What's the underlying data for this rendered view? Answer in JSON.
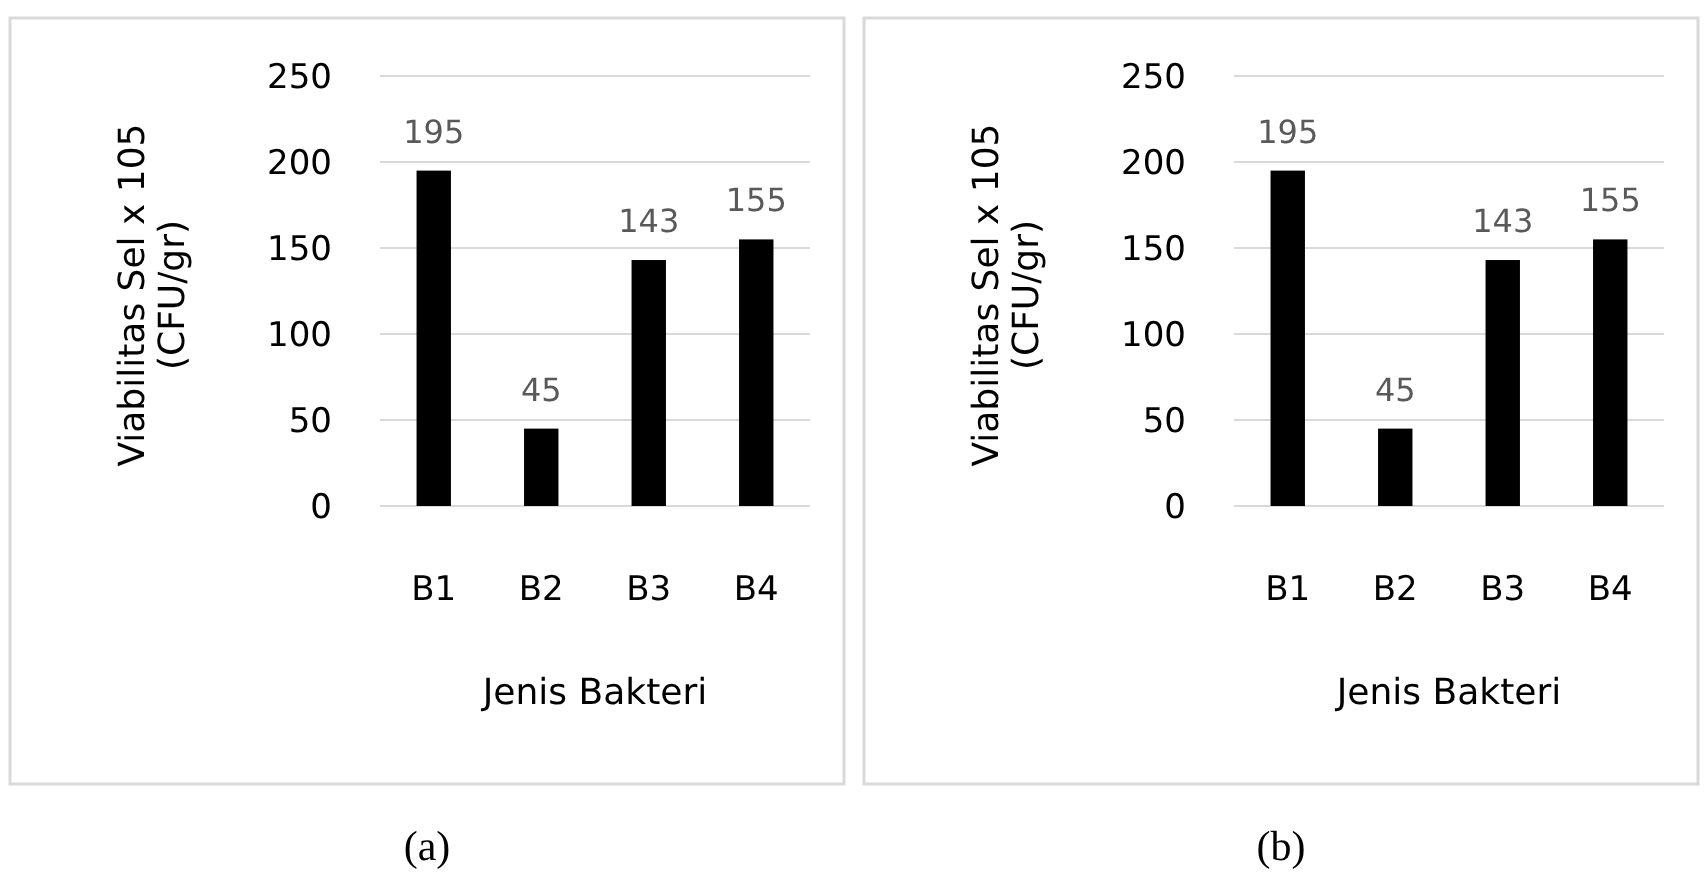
{
  "chart_data": [
    {
      "type": "bar",
      "xlabel": "Jenis Bakteri",
      "ylabel": "Viabilitas Sel x 105\n(CFU/gr)",
      "categories": [
        "B1",
        "B2",
        "B3",
        "B4"
      ],
      "values": [
        195,
        45,
        143,
        155
      ],
      "color": "#000000",
      "ylim": [
        0,
        250
      ],
      "yticks": [
        0,
        50,
        100,
        150,
        200,
        250
      ],
      "grid": "y",
      "data_labels": true,
      "annotations": [
        "(a)"
      ]
    },
    {
      "type": "bar",
      "xlabel": "Jenis Bakteri",
      "ylabel": "Viabilitas Sel x 105\n(CFU/gr)",
      "categories": [
        "B1",
        "B2",
        "B3",
        "B4"
      ],
      "values": [
        195,
        45,
        143,
        155
      ],
      "color": "#000000",
      "ylim": [
        0,
        250
      ],
      "yticks": [
        0,
        50,
        100,
        150,
        200,
        250
      ],
      "grid": "y",
      "data_labels": true,
      "annotations": [
        "(b)"
      ]
    }
  ]
}
